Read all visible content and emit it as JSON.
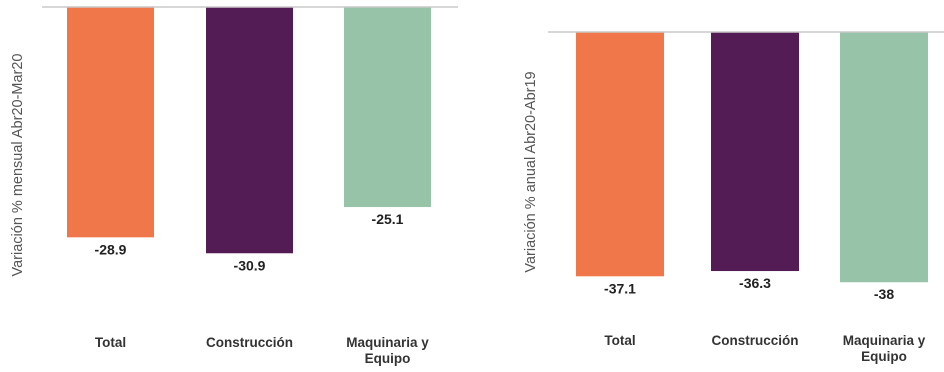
{
  "colors": {
    "total": "#f07749",
    "construccion": "#541c55",
    "maquinaria": "#97c4a8",
    "baseline": "#c8c8c8"
  },
  "chart_data": [
    {
      "type": "bar",
      "title": "",
      "xlabel": "",
      "ylabel": "Variación % mensual Abr20-Mar20",
      "categories": [
        "Total",
        "Construcción",
        "Maquinaria y Equipo"
      ],
      "values": [
        -28.9,
        -30.9,
        -25.1
      ],
      "data_labels": [
        "-28.9",
        "-30.9",
        "-25.1"
      ],
      "ylim": [
        -33,
        0
      ],
      "grid": false,
      "legend": "none"
    },
    {
      "type": "bar",
      "title": "",
      "xlabel": "",
      "ylabel": "Variación % anual Abr20-Abr19",
      "categories": [
        "Total",
        "Construcción",
        "Maquinaria y Equipo"
      ],
      "values": [
        -37.1,
        -36.3,
        -38
      ],
      "data_labels": [
        "-37.1",
        "-36.3",
        "-38"
      ],
      "ylim": [
        -41,
        0
      ],
      "grid": false,
      "legend": "none"
    }
  ]
}
